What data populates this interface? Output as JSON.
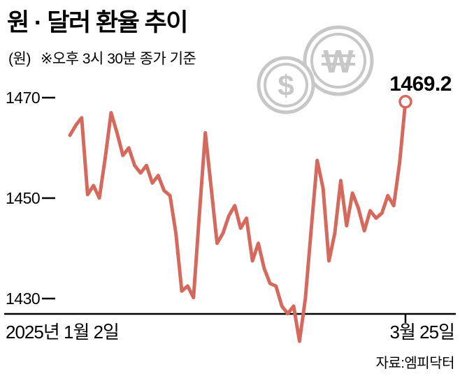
{
  "title": "원 · 달러 환율 추이",
  "subtitle": {
    "unit": "(원)",
    "note": "※오후 3시 30분 종가 기준"
  },
  "end_value_label": "1469.2",
  "source": "자료:엠피닥터",
  "x_axis": {
    "start_label": "2025년 1월 2일",
    "end_label": "3월 25일"
  },
  "y_axis": {
    "ticks": [
      "1470",
      "1450",
      "1430"
    ]
  },
  "icons": {
    "dollar_symbol": "$",
    "won_letter": "W"
  },
  "colors": {
    "line": "#d5695e",
    "coin": "#c7c7c7",
    "text": "#000000"
  },
  "chart_data": {
    "type": "line",
    "title": "원 · 달러 환율 추이",
    "ylabel": "원 (KRW per USD, 오후 3시 30분 종가 기준)",
    "x_start_label": "2025년 1월 2일",
    "x_end_label": "3월 25일",
    "ylim": [
      1420,
      1472
    ],
    "y_ticks": [
      1430,
      1450,
      1470
    ],
    "grid": false,
    "legend": "none",
    "last_value": 1469.2,
    "values": [
      1462.5,
      1464.5,
      1466.0,
      1450.7,
      1452.5,
      1450.0,
      1458.0,
      1467.0,
      1463.0,
      1458.5,
      1460.0,
      1456.5,
      1455.0,
      1456.5,
      1453.0,
      1454.5,
      1451.5,
      1450.5,
      1443.0,
      1431.5,
      1432.5,
      1430.2,
      1447.0,
      1463.0,
      1452.0,
      1441.0,
      1443.0,
      1446.5,
      1448.5,
      1444.0,
      1446.0,
      1437.5,
      1441.0,
      1436.0,
      1433.0,
      1432.5,
      1428.5,
      1427.0,
      1428.5,
      1421.5,
      1430.0,
      1444.0,
      1457.5,
      1452.0,
      1437.5,
      1443.0,
      1453.5,
      1444.5,
      1451.0,
      1448.0,
      1443.5,
      1447.5,
      1446.0,
      1447.0,
      1450.5,
      1448.5,
      1457.0,
      1469.2
    ]
  }
}
